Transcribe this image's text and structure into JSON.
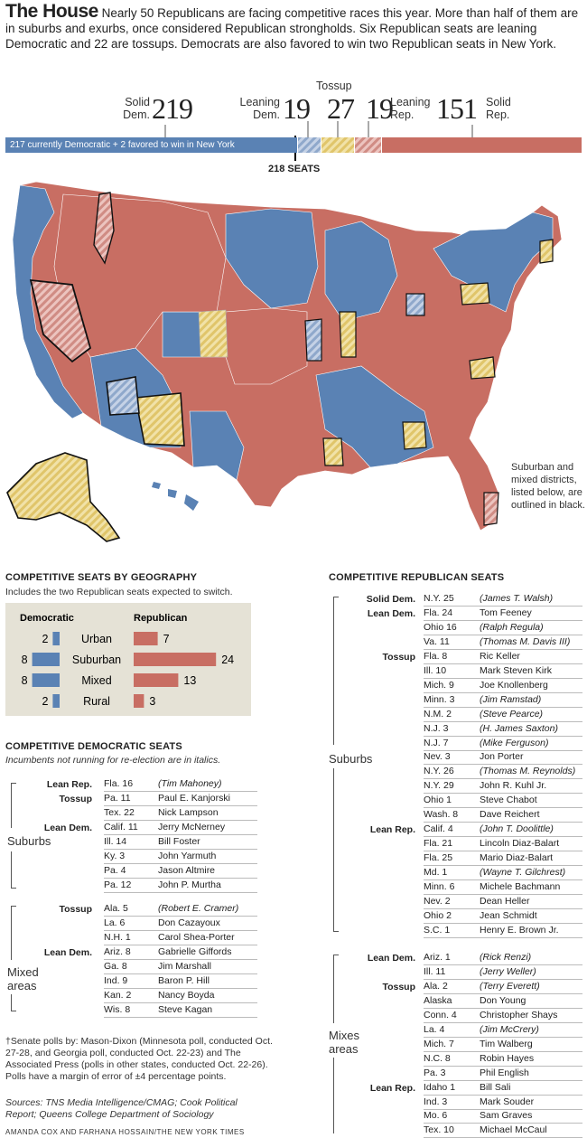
{
  "header": {
    "title": "The House",
    "text": "Nearly 50 Republicans are facing competitive races this year. More than half of them are in suburbs and exurbs, once considered Republican strongholds. Six Republican seats are leaning Democratic and 22 are tossups. Democrats are also favored to win two Republican seats in New York."
  },
  "colors": {
    "dem": "#5a82b4",
    "rep": "#c86e63",
    "toss": "#e6cf7c",
    "lean_dem": "#a9bbd6",
    "lean_rep": "#dca39c",
    "panel": "#e5e2d6"
  },
  "seat_bar": {
    "solid_dem_label1": "Solid",
    "solid_dem_label2": "Dem.",
    "solid_dem": "219",
    "lean_dem_label1": "Leaning",
    "lean_dem_label2": "Dem.",
    "lean_dem": "19",
    "tossup_label": "Tossup",
    "tossup": "27",
    "lean_rep_label1": "Leaning",
    "lean_rep_label2": "Rep.",
    "lean_rep": "19",
    "solid_rep_label1": "Solid",
    "solid_rep_label2": "Rep.",
    "solid_rep": "151",
    "bar_note": "217 currently Democratic + 2 favored to win in New York",
    "majority": "218 SEATS"
  },
  "map_note": "Suburban and mixed districts, listed below, are outlined in black.",
  "chart_data": {
    "type": "bar",
    "title": "COMPETITIVE SEATS BY GEOGRAPHY",
    "subtitle": "Includes the two Republican seats expected to switch.",
    "categories": [
      "Urban",
      "Suburban",
      "Mixed",
      "Rural"
    ],
    "series": [
      {
        "name": "Democratic",
        "values": [
          2,
          8,
          8,
          2
        ]
      },
      {
        "name": "Republican",
        "values": [
          7,
          24,
          13,
          3
        ]
      }
    ]
  },
  "dem_table": {
    "title": "COMPETITIVE DEMOCRATIC SEATS",
    "subtitle": "Incumbents not running for re-election are in italics.",
    "suburbs_label": "Suburbs",
    "mixed_label1": "Mixed",
    "mixed_label2": "areas",
    "rows": [
      {
        "cat": "Lean Rep.",
        "dist": "Fla. 16",
        "name": "(Tim Mahoney)",
        "italic": true
      },
      {
        "cat": "Tossup",
        "dist": "Pa. 11",
        "name": "Paul E. Kanjorski"
      },
      {
        "cat": "",
        "dist": "Tex. 22",
        "name": "Nick Lampson"
      },
      {
        "cat": "Lean Dem.",
        "dist": "Calif. 11",
        "name": "Jerry McNerney"
      },
      {
        "cat": "",
        "dist": "Ill. 14",
        "name": "Bill Foster"
      },
      {
        "cat": "",
        "dist": "Ky. 3",
        "name": "John Yarmuth"
      },
      {
        "cat": "",
        "dist": "Pa. 4",
        "name": "Jason Altmire"
      },
      {
        "cat": "",
        "dist": "Pa. 12",
        "name": "John P. Murtha"
      },
      {
        "cat": "Tossup",
        "dist": "Ala. 5",
        "name": "(Robert E. Cramer)",
        "italic": true
      },
      {
        "cat": "",
        "dist": "La. 6",
        "name": "Don Cazayoux"
      },
      {
        "cat": "",
        "dist": "N.H. 1",
        "name": "Carol Shea-Porter"
      },
      {
        "cat": "Lean Dem.",
        "dist": "Ariz. 8",
        "name": "Gabrielle Giffords"
      },
      {
        "cat": "",
        "dist": "Ga. 8",
        "name": "Jim Marshall"
      },
      {
        "cat": "",
        "dist": "Ind. 9",
        "name": "Baron P. Hill"
      },
      {
        "cat": "",
        "dist": "Kan. 2",
        "name": "Nancy Boyda"
      },
      {
        "cat": "",
        "dist": "Wis. 8",
        "name": "Steve Kagan"
      }
    ]
  },
  "footnote": "†Senate polls by: Mason-Dixon (Minnesota poll, conducted Oct. 27-28, and Georgia poll, conducted Oct. 22-23) and The Associated Press (polls in other states, conducted Oct. 22-26). Polls have a margin of error of ±4 percentage points.",
  "sources": "Sources: TNS Media Intelligence/CMAG; Cook Political Report; Queens College Department of Sociology",
  "credit": "AMANDA COX AND FARHANA HOSSAIN/THE NEW YORK TIMES",
  "rep_table": {
    "title": "COMPETITIVE REPUBLICAN SEATS",
    "suburbs_label": "Suburbs",
    "mixes_label1": "Mixes",
    "mixes_label2": "areas",
    "rows": [
      {
        "cat": "Solid Dem.",
        "dist": "N.Y. 25",
        "name": "(James T. Walsh)",
        "italic": true
      },
      {
        "cat": "Lean Dem.",
        "dist": "Fla. 24",
        "name": "Tom Feeney"
      },
      {
        "cat": "",
        "dist": "Ohio 16",
        "name": "(Ralph Regula)",
        "italic": true
      },
      {
        "cat": "",
        "dist": "Va. 11",
        "name": "(Thomas M. Davis III)",
        "italic": true
      },
      {
        "cat": "Tossup",
        "dist": "Fla. 8",
        "name": "Ric Keller"
      },
      {
        "cat": "",
        "dist": "Ill. 10",
        "name": "Mark Steven Kirk"
      },
      {
        "cat": "",
        "dist": "Mich. 9",
        "name": "Joe Knollenberg"
      },
      {
        "cat": "",
        "dist": "Minn. 3",
        "name": "(Jim Ramstad)",
        "italic": true
      },
      {
        "cat": "",
        "dist": "N.M. 2",
        "name": "(Steve Pearce)",
        "italic": true
      },
      {
        "cat": "",
        "dist": "N.J. 3",
        "name": "(H. James Saxton)",
        "italic": true
      },
      {
        "cat": "",
        "dist": "N.J. 7",
        "name": "(Mike Ferguson)",
        "italic": true
      },
      {
        "cat": "",
        "dist": "Nev. 3",
        "name": "Jon Porter"
      },
      {
        "cat": "",
        "dist": "N.Y. 26",
        "name": "(Thomas M. Reynolds)",
        "italic": true
      },
      {
        "cat": "",
        "dist": "N.Y. 29",
        "name": "John R. Kuhl Jr."
      },
      {
        "cat": "",
        "dist": "Ohio 1",
        "name": "Steve Chabot"
      },
      {
        "cat": "",
        "dist": "Wash. 8",
        "name": "Dave Reichert"
      },
      {
        "cat": "Lean Rep.",
        "dist": "Calif. 4",
        "name": "(John T. Doolittle)",
        "italic": true
      },
      {
        "cat": "",
        "dist": "Fla. 21",
        "name": "Lincoln Diaz-Balart"
      },
      {
        "cat": "",
        "dist": "Fla. 25",
        "name": "Mario Diaz-Balart"
      },
      {
        "cat": "",
        "dist": "Md. 1",
        "name": "(Wayne T. Gilchrest)",
        "italic": true
      },
      {
        "cat": "",
        "dist": "Minn. 6",
        "name": "Michele Bachmann"
      },
      {
        "cat": "",
        "dist": "Nev. 2",
        "name": "Dean Heller"
      },
      {
        "cat": "",
        "dist": "Ohio 2",
        "name": "Jean Schmidt"
      },
      {
        "cat": "",
        "dist": "S.C. 1",
        "name": "Henry E. Brown Jr."
      },
      {
        "cat": "Lean Dem.",
        "dist": "Ariz. 1",
        "name": "(Rick Renzi)",
        "italic": true
      },
      {
        "cat": "",
        "dist": "Ill. 11",
        "name": "(Jerry Weller)",
        "italic": true
      },
      {
        "cat": "Tossup",
        "dist": "Ala. 2",
        "name": "(Terry Everett)",
        "italic": true
      },
      {
        "cat": "",
        "dist": "Alaska",
        "name": "Don Young"
      },
      {
        "cat": "",
        "dist": "Conn. 4",
        "name": "Christopher Shays"
      },
      {
        "cat": "",
        "dist": "La. 4",
        "name": "(Jim McCrery)",
        "italic": true
      },
      {
        "cat": "",
        "dist": "Mich. 7",
        "name": "Tim Walberg"
      },
      {
        "cat": "",
        "dist": "N.C. 8",
        "name": "Robin Hayes"
      },
      {
        "cat": "",
        "dist": "Pa. 3",
        "name": "Phil English"
      },
      {
        "cat": "Lean Rep.",
        "dist": "Idaho 1",
        "name": "Bill Sali"
      },
      {
        "cat": "",
        "dist": "Ind. 3",
        "name": "Mark Souder"
      },
      {
        "cat": "",
        "dist": "Mo. 6",
        "name": "Sam Graves"
      },
      {
        "cat": "",
        "dist": "Tex. 10",
        "name": "Michael McCaul"
      }
    ]
  }
}
